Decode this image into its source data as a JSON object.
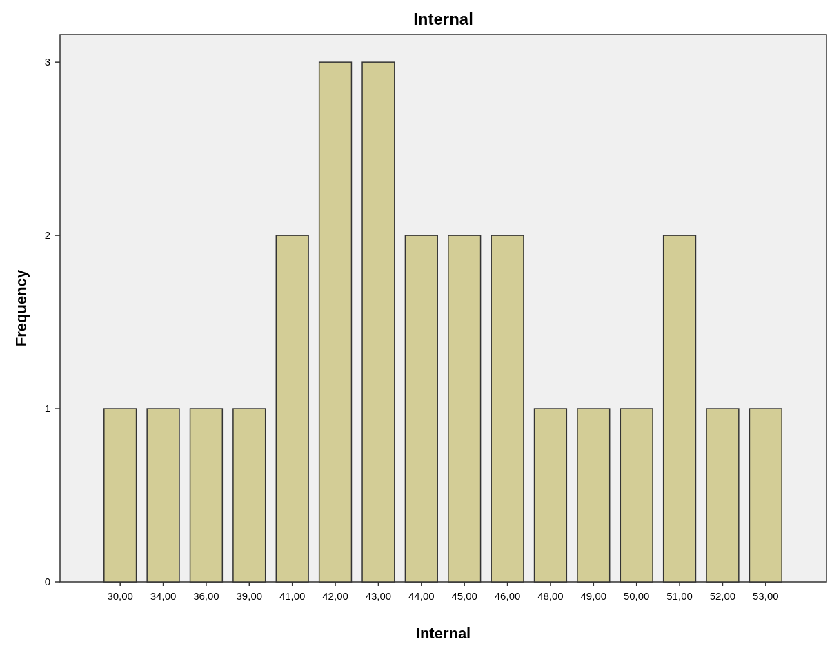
{
  "chart_data": {
    "type": "bar",
    "title": "Internal",
    "xlabel": "Internal",
    "ylabel": "Frequency",
    "categories": [
      "30,00",
      "34,00",
      "36,00",
      "39,00",
      "41,00",
      "42,00",
      "43,00",
      "44,00",
      "45,00",
      "46,00",
      "48,00",
      "49,00",
      "50,00",
      "51,00",
      "52,00",
      "53,00"
    ],
    "values": [
      1,
      1,
      1,
      1,
      2,
      3,
      3,
      2,
      2,
      2,
      1,
      1,
      1,
      2,
      1,
      1
    ],
    "color": "#d3cd96",
    "ylim": [
      0,
      3.16
    ],
    "yticks": [
      0,
      1,
      2,
      3
    ],
    "grid": false
  }
}
